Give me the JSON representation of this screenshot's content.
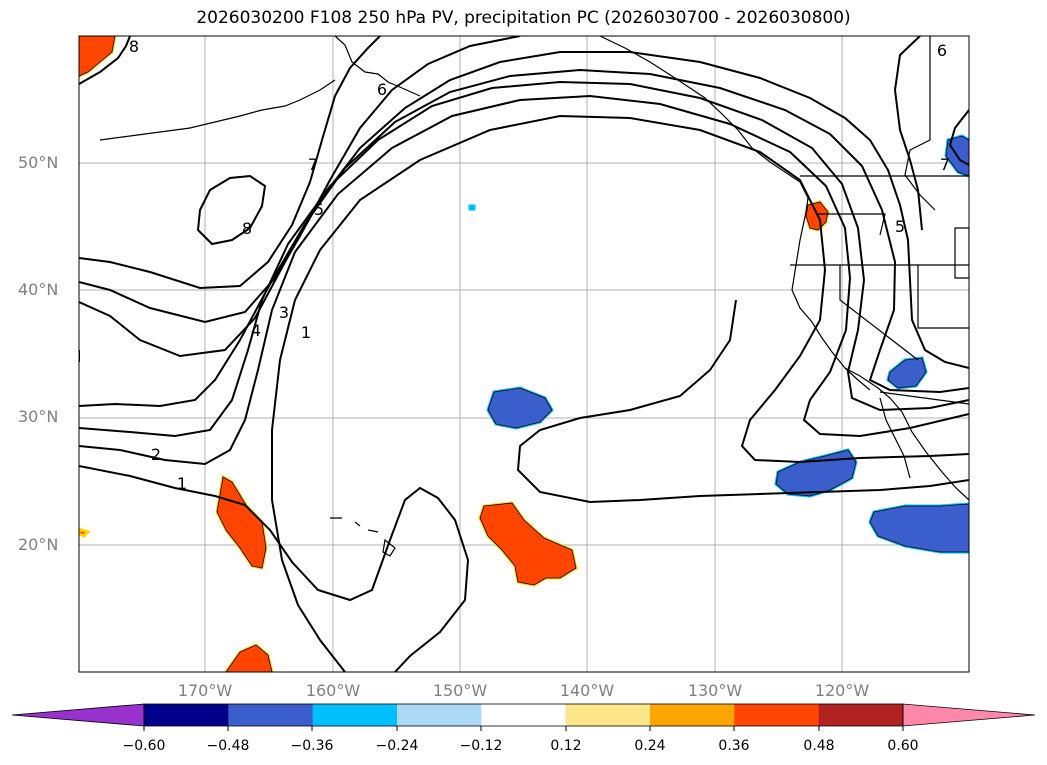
{
  "title": "2026030200 F108 250 hPa PV, precipitation PC (2026030700 - 2026030800)",
  "map": {
    "lat_labels": [
      "50°N",
      "40°N",
      "30°N",
      "20°N"
    ],
    "lon_labels": [
      "170°W",
      "160°W",
      "150°W",
      "140°W",
      "130°W",
      "120°W"
    ],
    "contour_labels": [
      "8",
      "6",
      "7",
      "5",
      "8",
      "4",
      "3",
      "1",
      "2",
      "1",
      "6",
      "7",
      "5"
    ],
    "colors": {
      "contour": "#000000",
      "coast": "#000000",
      "grid": "#b0b0b0",
      "positive_fill": "#ff4500",
      "positive_edge": "#ffd700",
      "negative_fill": "#3a5fcd",
      "negative_edge": "#00bfff"
    }
  },
  "colorbar": {
    "tick_labels": [
      "−0.60",
      "−0.48",
      "−0.36",
      "−0.24",
      "−0.12",
      "0.12",
      "0.24",
      "0.36",
      "0.48",
      "0.60"
    ],
    "bins": [
      {
        "color": "#9932cc"
      },
      {
        "color": "#00008b"
      },
      {
        "color": "#3a5fcd"
      },
      {
        "color": "#00bfff"
      },
      {
        "color": "#add8f6"
      },
      {
        "color": "#ffffff"
      },
      {
        "color": "#fde68a"
      },
      {
        "color": "#ffa500"
      },
      {
        "color": "#ff4500"
      },
      {
        "color": "#b22222"
      },
      {
        "color": "#ff88aa"
      }
    ]
  }
}
